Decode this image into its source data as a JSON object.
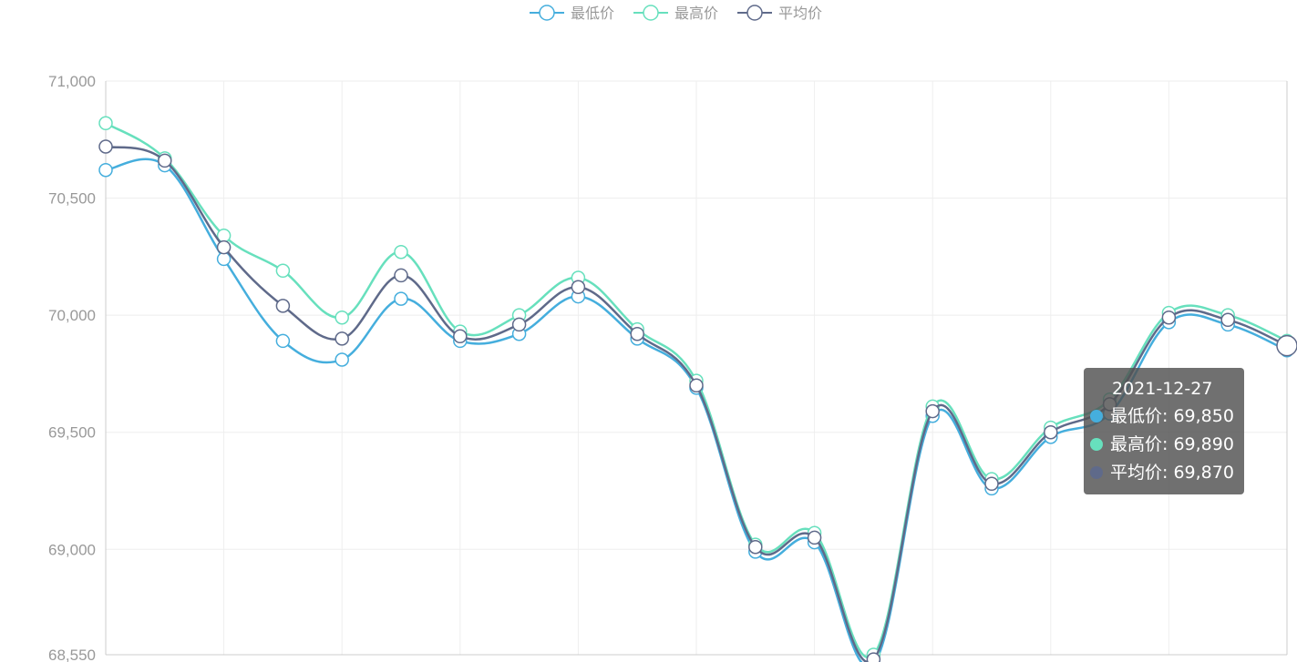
{
  "chart_data": {
    "type": "line",
    "smooth": true,
    "ylim": [
      68550,
      71000
    ],
    "y_ticks": [
      68550,
      69000,
      69500,
      70000,
      70500,
      71000
    ],
    "y_tick_labels": [
      "68,550",
      "69,000",
      "69,500",
      "70,000",
      "70,500",
      "71,000"
    ],
    "x_tick_labels_visible": false,
    "grid": true,
    "legend_position": "top-center",
    "series": [
      {
        "name": "最低价",
        "color": "#45aedd",
        "values": [
          70620,
          70640,
          70240,
          69890,
          69810,
          70070,
          69890,
          69920,
          70080,
          69900,
          69690,
          68990,
          69030,
          68510,
          69570,
          69260,
          69480,
          69580,
          69970,
          69960,
          69850
        ]
      },
      {
        "name": "最高价",
        "color": "#67e0bd",
        "values": [
          70820,
          70670,
          70340,
          70190,
          69990,
          70270,
          69930,
          70000,
          70160,
          69940,
          69720,
          69020,
          69070,
          68550,
          69610,
          69300,
          69520,
          69640,
          70010,
          70000,
          69890
        ]
      },
      {
        "name": "平均价",
        "color": "#5f6a8a",
        "values": [
          70720,
          70660,
          70290,
          70040,
          69900,
          70170,
          69910,
          69960,
          70120,
          69920,
          69700,
          69010,
          69050,
          68530,
          69590,
          69280,
          69500,
          69620,
          69990,
          69980,
          69870
        ]
      }
    ],
    "tooltip": {
      "title": "2021-12-27",
      "index": 20,
      "rows": [
        {
          "label": "最低价: 69,850",
          "color": "#45aedd"
        },
        {
          "label": "最高价: 69,890",
          "color": "#67e0bd"
        },
        {
          "label": "平均价: 69,870",
          "color": "#5f6a8a"
        }
      ]
    }
  }
}
